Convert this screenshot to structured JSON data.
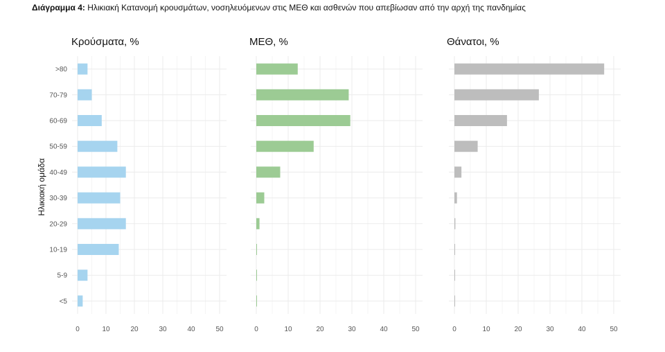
{
  "caption": {
    "prefix": "Διάγραμμα 4",
    "text": " Ηλικιακή Κατανομή κρουσμάτων, νοσηλευόμενων στις ΜΕΘ και ασθενών που απεβίωσαν από την αρχή της πανδημίας"
  },
  "chart_data": {
    "type": "bar",
    "orientation": "horizontal",
    "ylabel": "Ηλικιακή ομάδα",
    "categories": [
      ">80",
      "70-79",
      "60-69",
      "50-59",
      "40-49",
      "30-39",
      "20-29",
      "10-19",
      "5-9",
      "<5"
    ],
    "xlim": [
      0,
      50
    ],
    "xticks": [
      0,
      10,
      20,
      30,
      40,
      50
    ],
    "grid": true,
    "panels": [
      {
        "title": "Κρούσματα, %",
        "color": "#a6d4ef",
        "values": [
          3.5,
          5,
          8.5,
          14,
          17,
          15,
          17,
          14.5,
          3.5,
          1.8
        ]
      },
      {
        "title": "ΜΕΘ, %",
        "color": "#9ccb94",
        "values": [
          13,
          29,
          29.5,
          18,
          7.5,
          2.5,
          1,
          0.2,
          0.2,
          0.2
        ]
      },
      {
        "title": "Θάνατοι, %",
        "color": "#bdbdbd",
        "values": [
          47,
          26.5,
          16.5,
          7.3,
          2.2,
          0.8,
          0.3,
          0.2,
          0.1,
          0.1
        ]
      }
    ]
  }
}
